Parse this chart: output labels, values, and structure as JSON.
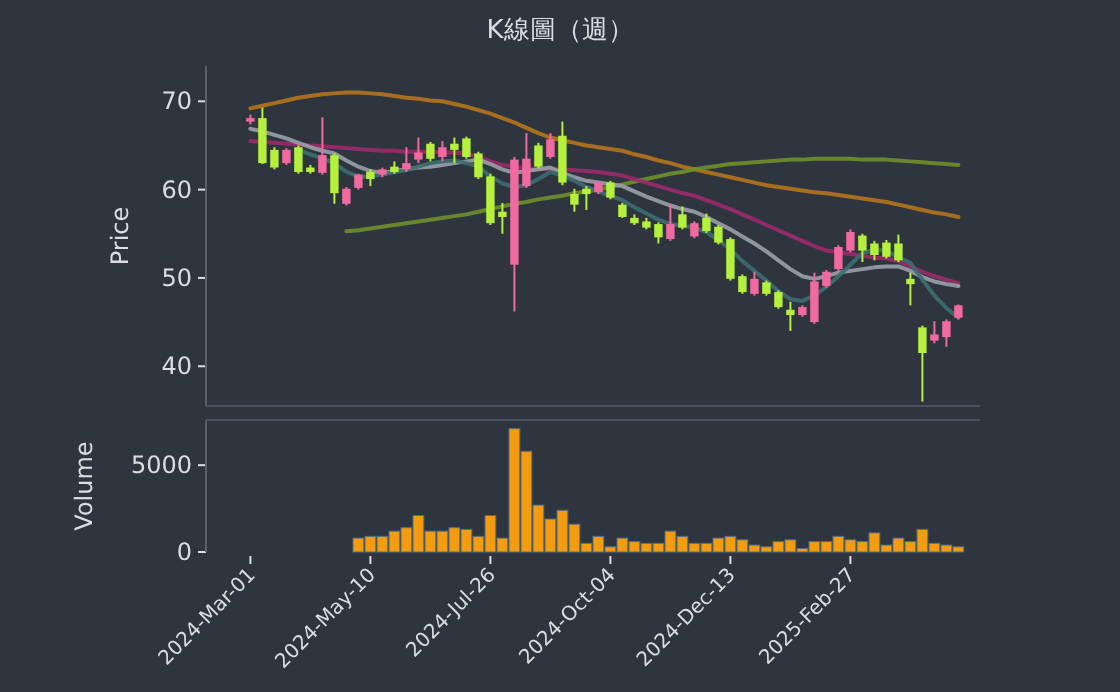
{
  "chart_data": [
    {
      "type": "candlestick",
      "title": "K線圖（週）",
      "ylabel": "Price",
      "tick_labels": "y",
      "ylim": [
        35.5,
        74
      ],
      "yticks": [
        40,
        50,
        60,
        70
      ],
      "categories": [
        null,
        null,
        null,
        null,
        null,
        null,
        null,
        null,
        null,
        null,
        null,
        null,
        null,
        null,
        null,
        null,
        null,
        null,
        null,
        null,
        null,
        null,
        null,
        null,
        null,
        null,
        null,
        null,
        null,
        null,
        null,
        null,
        null,
        null,
        null,
        null,
        null,
        null,
        null,
        null,
        null,
        null,
        null,
        null,
        null,
        null,
        null,
        null,
        null,
        null,
        null,
        null,
        null,
        null,
        null,
        null,
        null,
        null,
        null,
        null
      ],
      "ohlc": [
        [
          67.7,
          68.5,
          67.4,
          68.1
        ],
        [
          68.1,
          69.3,
          62.9,
          63.0
        ],
        [
          64.5,
          64.8,
          62.3,
          62.5
        ],
        [
          63.0,
          64.7,
          62.8,
          64.5
        ],
        [
          64.8,
          65.0,
          61.8,
          62.0
        ],
        [
          62.5,
          62.8,
          61.8,
          62.0
        ],
        [
          61.9,
          68.2,
          61.7,
          63.9
        ],
        [
          63.9,
          64.1,
          58.4,
          59.6
        ],
        [
          58.4,
          60.3,
          58.2,
          60.1
        ],
        [
          60.2,
          61.8,
          60.0,
          61.7
        ],
        [
          62.0,
          62.3,
          60.4,
          61.2
        ],
        [
          61.7,
          62.5,
          61.4,
          62.3
        ],
        [
          62.6,
          63.2,
          61.8,
          62.0
        ],
        [
          62.3,
          64.8,
          62.0,
          63.0
        ],
        [
          63.4,
          65.9,
          63.0,
          64.2
        ],
        [
          65.2,
          65.4,
          63.2,
          63.5
        ],
        [
          63.7,
          65.5,
          63.2,
          64.8
        ],
        [
          65.2,
          65.9,
          63.0,
          64.5
        ],
        [
          65.8,
          66.0,
          63.5,
          63.7
        ],
        [
          64.1,
          64.3,
          61.2,
          61.4
        ],
        [
          61.5,
          61.8,
          56.0,
          56.2
        ],
        [
          57.5,
          58.5,
          55.0,
          56.9
        ],
        [
          51.5,
          63.7,
          46.2,
          63.4
        ],
        [
          60.4,
          66.4,
          60.2,
          63.5
        ],
        [
          65.0,
          65.3,
          62.4,
          62.6
        ],
        [
          63.7,
          66.4,
          63.5,
          65.7
        ],
        [
          66.1,
          67.7,
          60.5,
          60.8
        ],
        [
          59.5,
          60.1,
          57.5,
          58.3
        ],
        [
          60.1,
          60.4,
          57.7,
          59.5
        ],
        [
          59.7,
          60.9,
          59.5,
          60.8
        ],
        [
          60.8,
          61.0,
          58.9,
          59.1
        ],
        [
          58.3,
          58.5,
          56.8,
          56.9
        ],
        [
          56.8,
          57.2,
          56.0,
          56.2
        ],
        [
          56.4,
          56.8,
          55.5,
          55.7
        ],
        [
          56.1,
          56.3,
          53.9,
          54.6
        ],
        [
          54.4,
          58.4,
          54.2,
          56.1
        ],
        [
          57.2,
          58.1,
          55.5,
          55.7
        ],
        [
          54.7,
          56.4,
          54.5,
          56.2
        ],
        [
          56.8,
          57.3,
          55.1,
          55.3
        ],
        [
          55.8,
          56.0,
          53.8,
          54.0
        ],
        [
          54.4,
          54.6,
          49.7,
          49.9
        ],
        [
          50.2,
          50.4,
          48.2,
          48.4
        ],
        [
          48.2,
          50.7,
          48.0,
          49.9
        ],
        [
          49.5,
          49.7,
          48.0,
          48.2
        ],
        [
          48.4,
          48.6,
          46.5,
          46.7
        ],
        [
          46.4,
          47.3,
          44.0,
          45.8
        ],
        [
          45.8,
          46.9,
          45.6,
          46.7
        ],
        [
          45.0,
          50.6,
          44.8,
          49.6
        ],
        [
          49.1,
          50.9,
          48.9,
          50.7
        ],
        [
          51.0,
          53.7,
          50.8,
          53.5
        ],
        [
          53.1,
          55.5,
          52.9,
          55.2
        ],
        [
          54.8,
          55.0,
          51.8,
          53.1
        ],
        [
          53.9,
          54.2,
          52.0,
          52.6
        ],
        [
          54.0,
          54.3,
          52.2,
          52.4
        ],
        [
          53.9,
          54.9,
          51.8,
          52.0
        ],
        [
          49.9,
          50.6,
          46.9,
          49.3
        ],
        [
          44.4,
          44.6,
          36.0,
          41.5
        ],
        [
          42.9,
          45.1,
          42.6,
          43.6
        ],
        [
          43.3,
          45.3,
          42.2,
          45.1
        ],
        [
          45.5,
          47.0,
          45.3,
          46.9
        ]
      ],
      "colors": [
        "#f06aa0",
        "#b4f03c",
        "#b4f03c",
        "#f06aa0",
        "#b4f03c",
        "#b4f03c",
        "#f06aa0",
        "#b4f03c",
        "#f06aa0",
        "#f06aa0",
        "#b4f03c",
        "#f06aa0",
        "#b4f03c",
        "#f06aa0",
        "#f06aa0",
        "#b4f03c",
        "#f06aa0",
        "#b4f03c",
        "#b4f03c",
        "#b4f03c",
        "#b4f03c",
        "#b4f03c",
        "#f06aa0",
        "#f06aa0",
        "#b4f03c",
        "#f06aa0",
        "#b4f03c",
        "#b4f03c",
        "#b4f03c",
        "#f06aa0",
        "#b4f03c",
        "#b4f03c",
        "#b4f03c",
        "#b4f03c",
        "#b4f03c",
        "#f06aa0",
        "#b4f03c",
        "#f06aa0",
        "#b4f03c",
        "#b4f03c",
        "#b4f03c",
        "#b4f03c",
        "#f06aa0",
        "#b4f03c",
        "#b4f03c",
        "#b4f03c",
        "#f06aa0",
        "#f06aa0",
        "#f06aa0",
        "#f06aa0",
        "#f06aa0",
        "#b4f03c",
        "#b4f03c",
        "#b4f03c",
        "#b4f03c",
        "#b4f03c",
        "#b4f03c",
        "#f06aa0",
        "#f06aa0",
        "#f06aa0"
      ],
      "series": [
        {
          "type": "line",
          "color": "#b5741c",
          "values": [
            69.2,
            69.5,
            69.8,
            70.1,
            70.4,
            70.6,
            70.8,
            70.9,
            71.0,
            71.0,
            70.9,
            70.8,
            70.6,
            70.4,
            70.3,
            70.1,
            70.0,
            69.7,
            69.4,
            69.0,
            68.6,
            68.1,
            67.6,
            67.0,
            66.4,
            65.9,
            65.6,
            65.3,
            65.0,
            64.8,
            64.6,
            64.4,
            64.0,
            63.7,
            63.3,
            63.0,
            62.6,
            62.3,
            62.0,
            61.7,
            61.4,
            61.1,
            60.8,
            60.5,
            60.3,
            60.1,
            59.9,
            59.7,
            59.6,
            59.4,
            59.2,
            59.0,
            58.8,
            58.6,
            58.3,
            58.0,
            57.7,
            57.4,
            57.2,
            56.9
          ]
        },
        {
          "type": "line",
          "color": "#6f8f2a",
          "values": [
            null,
            null,
            null,
            null,
            null,
            null,
            null,
            null,
            55.3,
            55.4,
            55.6,
            55.8,
            56.0,
            56.2,
            56.4,
            56.6,
            56.8,
            57.0,
            57.2,
            57.5,
            57.8,
            58.1,
            58.4,
            58.6,
            58.9,
            59.1,
            59.3,
            59.6,
            59.8,
            60.0,
            60.3,
            60.6,
            60.9,
            61.2,
            61.5,
            61.8,
            62.0,
            62.3,
            62.5,
            62.7,
            62.9,
            63.0,
            63.1,
            63.2,
            63.3,
            63.4,
            63.4,
            63.5,
            63.5,
            63.5,
            63.5,
            63.4,
            63.4,
            63.4,
            63.3,
            63.2,
            63.1,
            63.0,
            62.9,
            62.8
          ]
        },
        {
          "type": "line",
          "color": "#9c2a6b",
          "values": [
            65.5,
            65.4,
            65.3,
            65.2,
            65.1,
            65.0,
            64.9,
            64.8,
            64.7,
            64.6,
            64.5,
            64.4,
            64.4,
            64.3,
            64.3,
            64.3,
            64.2,
            64.2,
            64.1,
            63.7,
            63.2,
            62.8,
            62.6,
            62.4,
            62.3,
            62.3,
            62.3,
            62.2,
            62.1,
            62.0,
            61.8,
            61.6,
            61.2,
            60.8,
            60.4,
            60.0,
            59.6,
            59.3,
            58.8,
            58.3,
            57.8,
            57.2,
            56.6,
            56.0,
            55.4,
            54.8,
            54.2,
            53.6,
            53.1,
            52.9,
            52.7,
            52.5,
            52.3,
            52.2,
            51.9,
            51.3,
            50.7,
            50.2,
            49.8,
            49.4
          ]
        },
        {
          "type": "line",
          "color": "#9aa0a8",
          "values": [
            66.9,
            66.6,
            66.2,
            65.8,
            65.3,
            64.8,
            64.4,
            64.1,
            63.3,
            62.6,
            62.1,
            61.9,
            62.1,
            62.3,
            62.5,
            62.6,
            62.8,
            63.0,
            63.2,
            63.4,
            62.9,
            62.3,
            61.9,
            62.1,
            62.3,
            62.5,
            61.9,
            61.4,
            61.0,
            60.8,
            60.6,
            60.4,
            59.8,
            59.2,
            58.7,
            58.2,
            57.8,
            57.5,
            56.9,
            56.2,
            55.5,
            54.7,
            53.9,
            53.0,
            52.0,
            51.0,
            50.2,
            49.9,
            50.2,
            50.6,
            50.8,
            51.0,
            51.2,
            51.3,
            51.3,
            50.8,
            50.1,
            49.6,
            49.3,
            49.1
          ]
        },
        {
          "type": "line",
          "color": "#3d6e72",
          "values": [
            null,
            null,
            null,
            null,
            64.5,
            64.0,
            63.5,
            63.0,
            62.0,
            61.5,
            61.5,
            61.7,
            62.0,
            62.2,
            62.6,
            63.0,
            63.2,
            63.3,
            63.0,
            62.6,
            61.5,
            60.7,
            60.3,
            60.5,
            61.2,
            62.0,
            61.6,
            61.0,
            60.3,
            59.8,
            59.3,
            58.8,
            58.0,
            57.3,
            56.6,
            56.1,
            55.9,
            55.7,
            55.2,
            54.3,
            53.2,
            51.9,
            50.8,
            49.7,
            48.5,
            47.6,
            47.4,
            48.0,
            49.0,
            50.2,
            51.5,
            52.8,
            53.2,
            53.1,
            52.3,
            51.7,
            49.8,
            48.0,
            46.6,
            45.5
          ]
        }
      ]
    },
    {
      "type": "bar",
      "ylabel": "Volume",
      "ylim": [
        0,
        7600
      ],
      "yticks": [
        0,
        5000
      ],
      "color": "#f39c12",
      "categories": [
        "2024-Mar-01",
        null,
        null,
        null,
        null,
        null,
        null,
        null,
        null,
        null,
        "2024-May-10",
        null,
        null,
        null,
        null,
        null,
        null,
        null,
        null,
        null,
        "2024-Jul-26",
        null,
        null,
        null,
        null,
        null,
        null,
        null,
        null,
        null,
        "2024-Oct-04",
        null,
        null,
        null,
        null,
        null,
        null,
        null,
        null,
        null,
        "2024-Dec-13",
        null,
        null,
        null,
        null,
        null,
        null,
        null,
        null,
        null,
        "2025-Feb-27",
        null,
        null,
        null,
        null,
        null,
        null,
        null,
        null,
        null
      ],
      "values": [
        null,
        null,
        null,
        null,
        null,
        null,
        null,
        null,
        null,
        800,
        900,
        900,
        1200,
        1400,
        2100,
        1200,
        1200,
        1400,
        1300,
        900,
        2100,
        800,
        7100,
        5800,
        2700,
        1900,
        2400,
        1600,
        500,
        900,
        300,
        800,
        600,
        500,
        500,
        1200,
        900,
        500,
        500,
        800,
        900,
        700,
        400,
        300,
        600,
        700,
        200,
        600,
        600,
        900,
        700,
        600,
        1100,
        400,
        800,
        600,
        1300,
        500,
        400,
        300
      ]
    }
  ]
}
